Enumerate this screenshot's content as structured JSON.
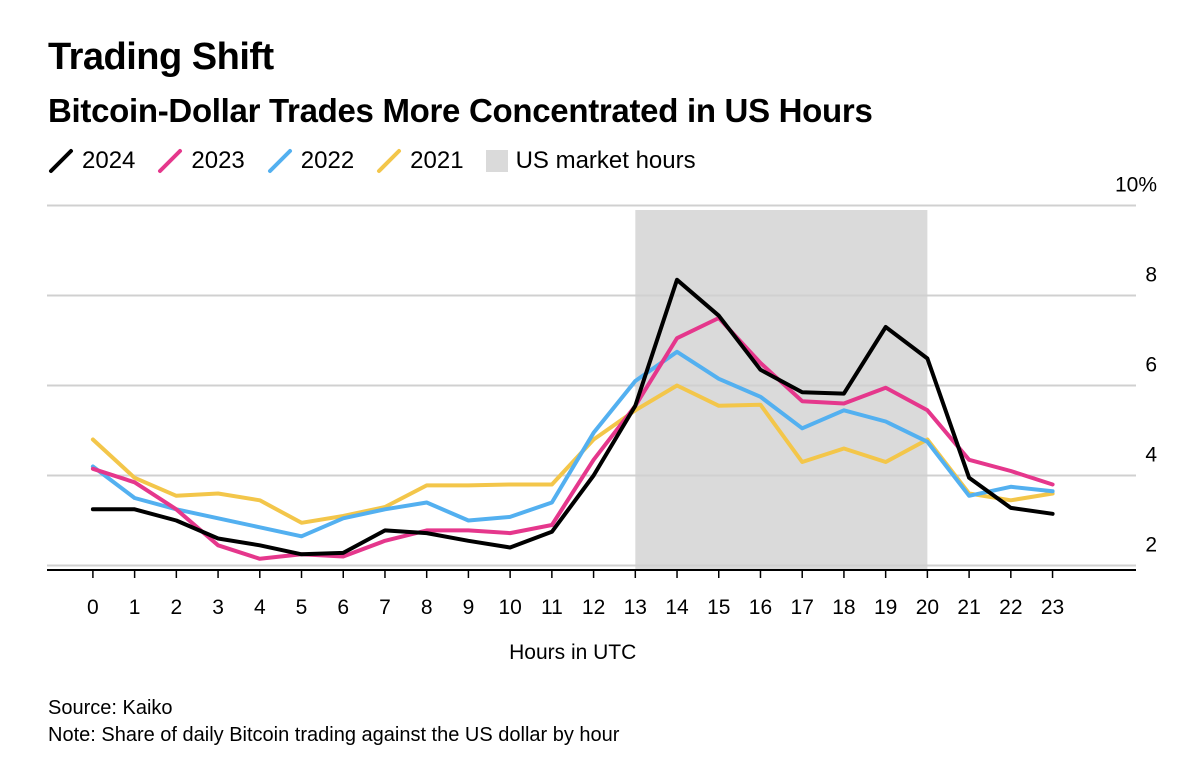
{
  "header": {
    "title": "Trading Shift",
    "subtitle": "Bitcoin-Dollar Trades More Concentrated in US Hours"
  },
  "legend": {
    "items": [
      {
        "label": "2024",
        "color": "#000000",
        "kind": "line"
      },
      {
        "label": "2023",
        "color": "#e5378c",
        "kind": "line"
      },
      {
        "label": "2022",
        "color": "#53b0f0",
        "kind": "line"
      },
      {
        "label": "2021",
        "color": "#f3c64a",
        "kind": "line"
      },
      {
        "label": "US market hours",
        "color": "#dadada",
        "kind": "box"
      }
    ]
  },
  "chart_data": {
    "type": "line",
    "xlabel": "Hours in UTC",
    "ylabel": "",
    "x": [
      0,
      1,
      2,
      3,
      4,
      5,
      6,
      7,
      8,
      9,
      10,
      11,
      12,
      13,
      14,
      15,
      16,
      17,
      18,
      19,
      20,
      21,
      22,
      23
    ],
    "xlim": [
      -1.1,
      25.0
    ],
    "ylim": [
      1.9,
      9.9
    ],
    "yticks": [
      2,
      4,
      6,
      8,
      10
    ],
    "ytick_labels": [
      "2",
      "4",
      "6",
      "8",
      "10%"
    ],
    "grid": true,
    "shaded_region": {
      "label": "US market hours",
      "x_start": 13,
      "x_end": 20
    },
    "series": [
      {
        "name": "2021",
        "color": "#f3c64a",
        "values": [
          4.8,
          3.95,
          3.55,
          3.6,
          3.45,
          2.95,
          3.1,
          3.3,
          3.78,
          3.78,
          3.8,
          3.8,
          4.8,
          5.45,
          6.0,
          5.55,
          5.57,
          4.3,
          4.6,
          4.3,
          4.8,
          3.6,
          3.45,
          3.6
        ]
      },
      {
        "name": "2022",
        "color": "#53b0f0",
        "values": [
          4.2,
          3.5,
          3.25,
          3.05,
          2.85,
          2.65,
          3.05,
          3.25,
          3.4,
          3.0,
          3.08,
          3.4,
          4.95,
          6.1,
          6.75,
          6.15,
          5.75,
          5.05,
          5.45,
          5.2,
          4.75,
          3.55,
          3.75,
          3.65
        ]
      },
      {
        "name": "2023",
        "color": "#e5378c",
        "values": [
          4.15,
          3.85,
          3.25,
          2.45,
          2.15,
          2.25,
          2.2,
          2.55,
          2.78,
          2.78,
          2.72,
          2.9,
          4.35,
          5.55,
          7.05,
          7.5,
          6.5,
          5.65,
          5.6,
          5.95,
          5.45,
          4.35,
          4.1,
          3.8
        ]
      },
      {
        "name": "2024",
        "color": "#000000",
        "values": [
          3.25,
          3.25,
          3.0,
          2.6,
          2.45,
          2.25,
          2.28,
          2.78,
          2.72,
          2.55,
          2.4,
          2.75,
          4.0,
          5.55,
          8.35,
          7.55,
          6.35,
          5.85,
          5.82,
          7.3,
          6.6,
          3.95,
          3.28,
          3.15
        ]
      }
    ]
  },
  "footer": {
    "source": "Source: Kaiko",
    "note": "Note: Share of daily Bitcoin trading against the US dollar by hour"
  }
}
